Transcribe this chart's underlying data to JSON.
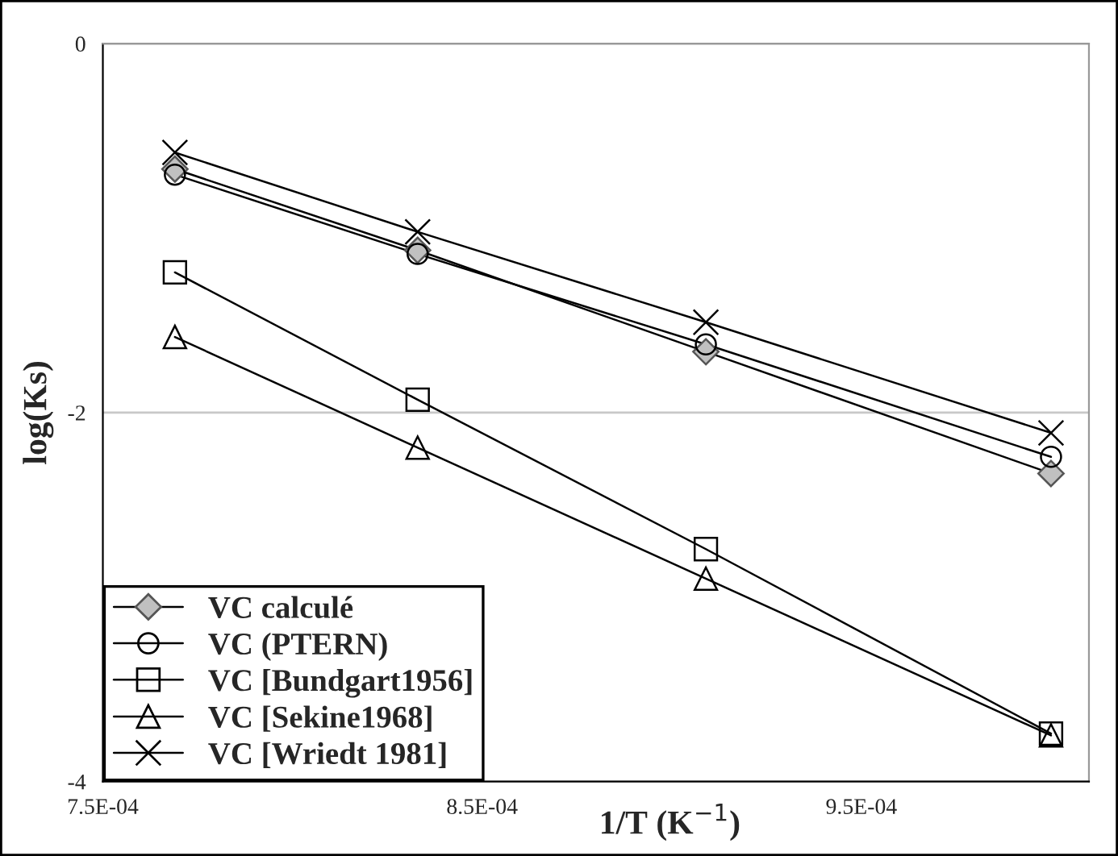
{
  "chart_data": {
    "type": "line",
    "xlabel": "1/T (K$^{−1}$)",
    "ylabel": "log(Ks)",
    "x": [
      0.000769,
      0.000833,
      0.000909,
      0.001
    ],
    "series": [
      {
        "name": "VC calculé",
        "color": "#000000",
        "marker": "diamond",
        "values": [
          -0.68,
          -1.12,
          -1.67,
          -2.33
        ]
      },
      {
        "name": "VC (PTERN)",
        "color": "#000000",
        "marker": "circle",
        "values": [
          -0.71,
          -1.14,
          -1.63,
          -2.24
        ]
      },
      {
        "name": "VC [Bundgart1956]",
        "color": "#000000",
        "marker": "square",
        "values": [
          -1.24,
          -1.93,
          -2.74,
          -3.74
        ]
      },
      {
        "name": "VC [Sekine1968]",
        "color": "#000000",
        "marker": "triangle",
        "values": [
          -1.59,
          -2.19,
          -2.9,
          -3.75
        ]
      },
      {
        "name": "VC [Wriedt 1981]",
        "color": "#000000",
        "marker": "cross",
        "values": [
          -0.59,
          -1.02,
          -1.51,
          -2.11
        ]
      }
    ],
    "xlim": [
      0.00075,
      0.00101
    ],
    "xticks": [
      {
        "value": 0.00075,
        "label": "7.5E-04"
      },
      {
        "value": 0.00085,
        "label": "8.5E-04"
      },
      {
        "value": 0.00095,
        "label": "9.5E-04"
      }
    ],
    "ylim": [
      -4,
      0
    ],
    "yticks": [
      -4,
      -2,
      0
    ],
    "grid": "y",
    "legend": "bottom left",
    "line_style": "solid"
  }
}
